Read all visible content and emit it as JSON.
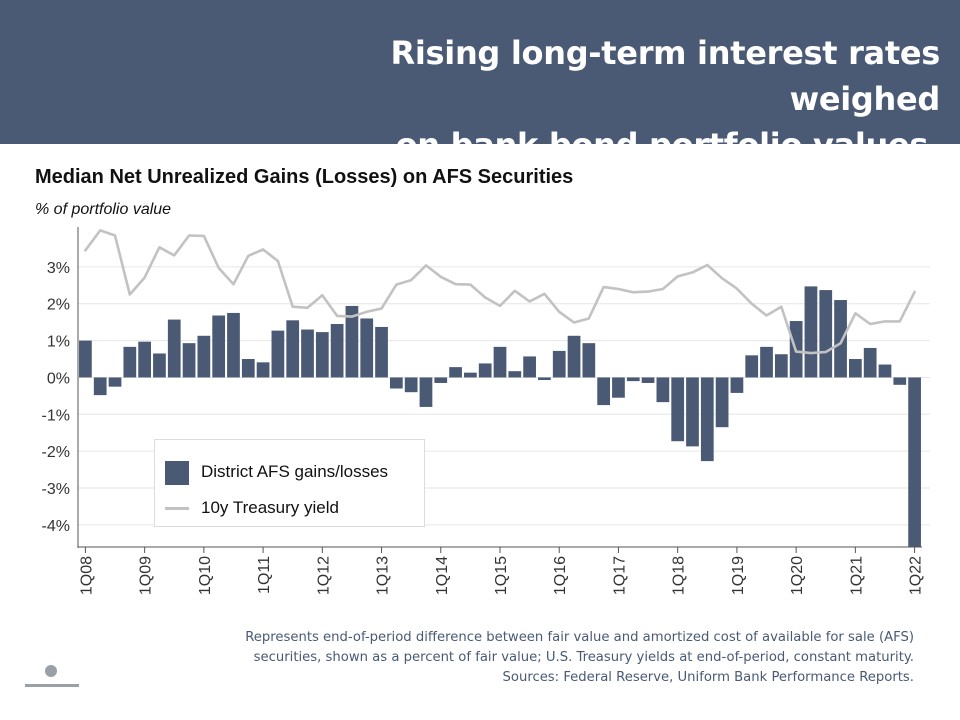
{
  "banner": {
    "title_line1": "Rising long-term interest rates weighed",
    "title_line2": "on bank bond portfolio values."
  },
  "footnote": {
    "line1": "Represents end-of-period difference between fair value and amortized cost of available for sale (AFS)",
    "line2": "securities, shown as a percent of fair value; U.S. Treasury yields at end-of-period, constant maturity.",
    "line3": "Sources: Federal Reserve, Uniform Bank Performance Reports."
  },
  "colors": {
    "bars": "#4a5a75",
    "line": "#c2c2c2",
    "banner": "#4a5a75",
    "grid": "#e6e6e6"
  },
  "chart_data": {
    "type": "bar",
    "title": "Median Net Unrealized Gains (Losses) on AFS Securities",
    "subtitle": "% of portfolio value",
    "y_unit": "%",
    "ylim": [
      -4.6,
      4.0
    ],
    "yticks": [
      3,
      2,
      1,
      0,
      -1,
      -2,
      -3,
      -4
    ],
    "ytick_labels": [
      "3%",
      "2%",
      "1%",
      "0%",
      "-1%",
      "-2%",
      "-3%",
      "-4%"
    ],
    "grid": true,
    "legend_position": "bottom-left",
    "legend": [
      "District AFS gains/losses",
      "10y Treasury yield"
    ],
    "x_tick_labels": [
      "1Q08",
      "1Q09",
      "1Q10",
      "1Q11",
      "1Q12",
      "1Q13",
      "1Q14",
      "1Q15",
      "1Q16",
      "1Q17",
      "1Q18",
      "1Q19",
      "1Q20",
      "1Q21",
      "1Q22"
    ],
    "categories": [
      "1Q08",
      "2Q08",
      "3Q08",
      "4Q08",
      "1Q09",
      "2Q09",
      "3Q09",
      "4Q09",
      "1Q10",
      "2Q10",
      "3Q10",
      "4Q10",
      "1Q11",
      "2Q11",
      "3Q11",
      "4Q11",
      "1Q12",
      "2Q12",
      "3Q12",
      "4Q12",
      "1Q13",
      "2Q13",
      "3Q13",
      "4Q13",
      "1Q14",
      "2Q14",
      "3Q14",
      "4Q14",
      "1Q15",
      "2Q15",
      "3Q15",
      "4Q15",
      "1Q16",
      "2Q16",
      "3Q16",
      "4Q16",
      "1Q17",
      "2Q17",
      "3Q17",
      "4Q17",
      "1Q18",
      "2Q18",
      "3Q18",
      "4Q18",
      "1Q19",
      "2Q19",
      "3Q19",
      "4Q19",
      "1Q20",
      "2Q20",
      "3Q20",
      "4Q20",
      "1Q21",
      "2Q21",
      "3Q21",
      "4Q21",
      "1Q22"
    ],
    "series": [
      {
        "name": "District AFS gains/losses",
        "type": "bar",
        "values": [
          1.0,
          -0.48,
          -0.25,
          0.83,
          0.97,
          0.65,
          1.57,
          0.93,
          1.13,
          1.68,
          1.75,
          0.5,
          0.41,
          1.27,
          1.55,
          1.3,
          1.23,
          1.45,
          1.94,
          1.6,
          1.37,
          -0.3,
          -0.4,
          -0.8,
          -0.15,
          0.28,
          0.13,
          0.38,
          0.83,
          0.17,
          0.57,
          -0.07,
          0.72,
          1.13,
          0.93,
          -0.75,
          -0.55,
          -0.1,
          -0.15,
          -0.67,
          -1.73,
          -1.87,
          -2.27,
          -1.35,
          -0.42,
          0.6,
          0.83,
          0.63,
          1.53,
          2.47,
          2.37,
          2.1,
          0.5,
          0.8,
          0.35,
          -0.2,
          -4.6
        ]
      },
      {
        "name": "10y Treasury yield",
        "type": "line",
        "values": [
          3.45,
          3.99,
          3.85,
          2.25,
          2.71,
          3.53,
          3.31,
          3.85,
          3.84,
          2.97,
          2.53,
          3.3,
          3.47,
          3.16,
          1.92,
          1.89,
          2.23,
          1.67,
          1.65,
          1.78,
          1.87,
          2.52,
          2.64,
          3.04,
          2.73,
          2.53,
          2.52,
          2.17,
          1.94,
          2.35,
          2.06,
          2.27,
          1.78,
          1.49,
          1.6,
          2.45,
          2.4,
          2.31,
          2.33,
          2.4,
          2.74,
          2.85,
          3.05,
          2.69,
          2.41,
          2.0,
          1.68,
          1.92,
          0.7,
          0.66,
          0.69,
          0.93,
          1.74,
          1.45,
          1.52,
          1.52,
          2.32
        ]
      }
    ]
  }
}
